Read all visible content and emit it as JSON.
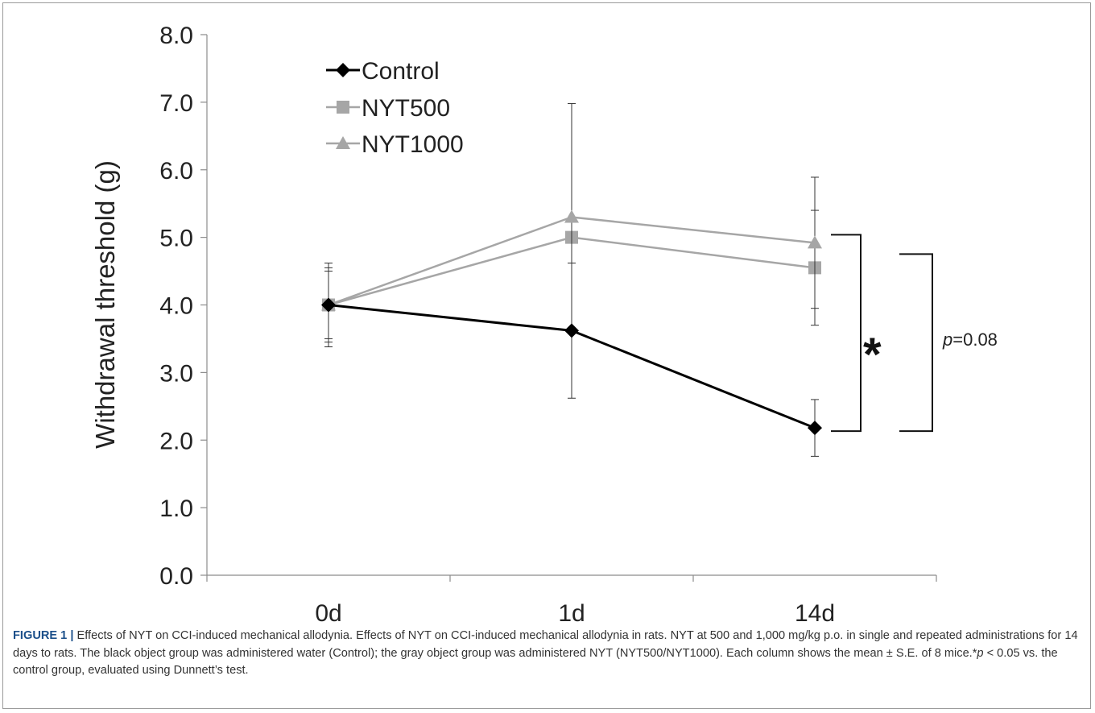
{
  "chart_data": {
    "type": "line",
    "ylabel": "Withdrawal threshold (g)",
    "xlabel": "",
    "categories": [
      "0d",
      "1d",
      "14d"
    ],
    "ylim": [
      0,
      8
    ],
    "yticks": [
      "0.0",
      "1.0",
      "2.0",
      "3.0",
      "4.0",
      "5.0",
      "6.0",
      "7.0",
      "8.0"
    ],
    "grid": false,
    "legend_position": "top-left",
    "series": [
      {
        "name": "Control",
        "marker": "diamond",
        "color": "#000000",
        "values": [
          4.0,
          3.62,
          2.18
        ],
        "error": [
          0.55,
          1.0,
          0.42
        ]
      },
      {
        "name": "NYT500",
        "marker": "square",
        "color": "#a6a6a6",
        "values": [
          4.0,
          5.0,
          4.55
        ],
        "error": [
          0.62,
          0.0,
          0.85
        ]
      },
      {
        "name": "NYT1000",
        "marker": "triangle",
        "color": "#a6a6a6",
        "values": [
          4.0,
          5.3,
          4.92
        ],
        "error": [
          0.5,
          1.68,
          0.97
        ]
      }
    ],
    "annotations": [
      {
        "text": "*",
        "compares": [
          "Control",
          "NYT1000"
        ],
        "at": "14d"
      },
      {
        "text_italic": "p",
        "text": "=0.08",
        "compares": [
          "Control",
          "NYT500"
        ],
        "at": "14d"
      }
    ]
  },
  "caption": {
    "label": "FIGURE 1 |",
    "text_parts": [
      " Effects of NYT on CCI-induced mechanical allodynia. Effects of NYT on CCI-induced mechanical allodynia in rats. NYT at 500 and 1,000 mg/kg p.o. in single and repeated administrations for 14 days to rats. The black object group was administered water (Control); the gray object group was administered NYT (NYT500/NYT1000). Each column shows the mean ± S.E. of 8 mice.*",
      "p",
      " < 0.05 vs. the control group, evaluated using Dunnett’s test."
    ]
  }
}
